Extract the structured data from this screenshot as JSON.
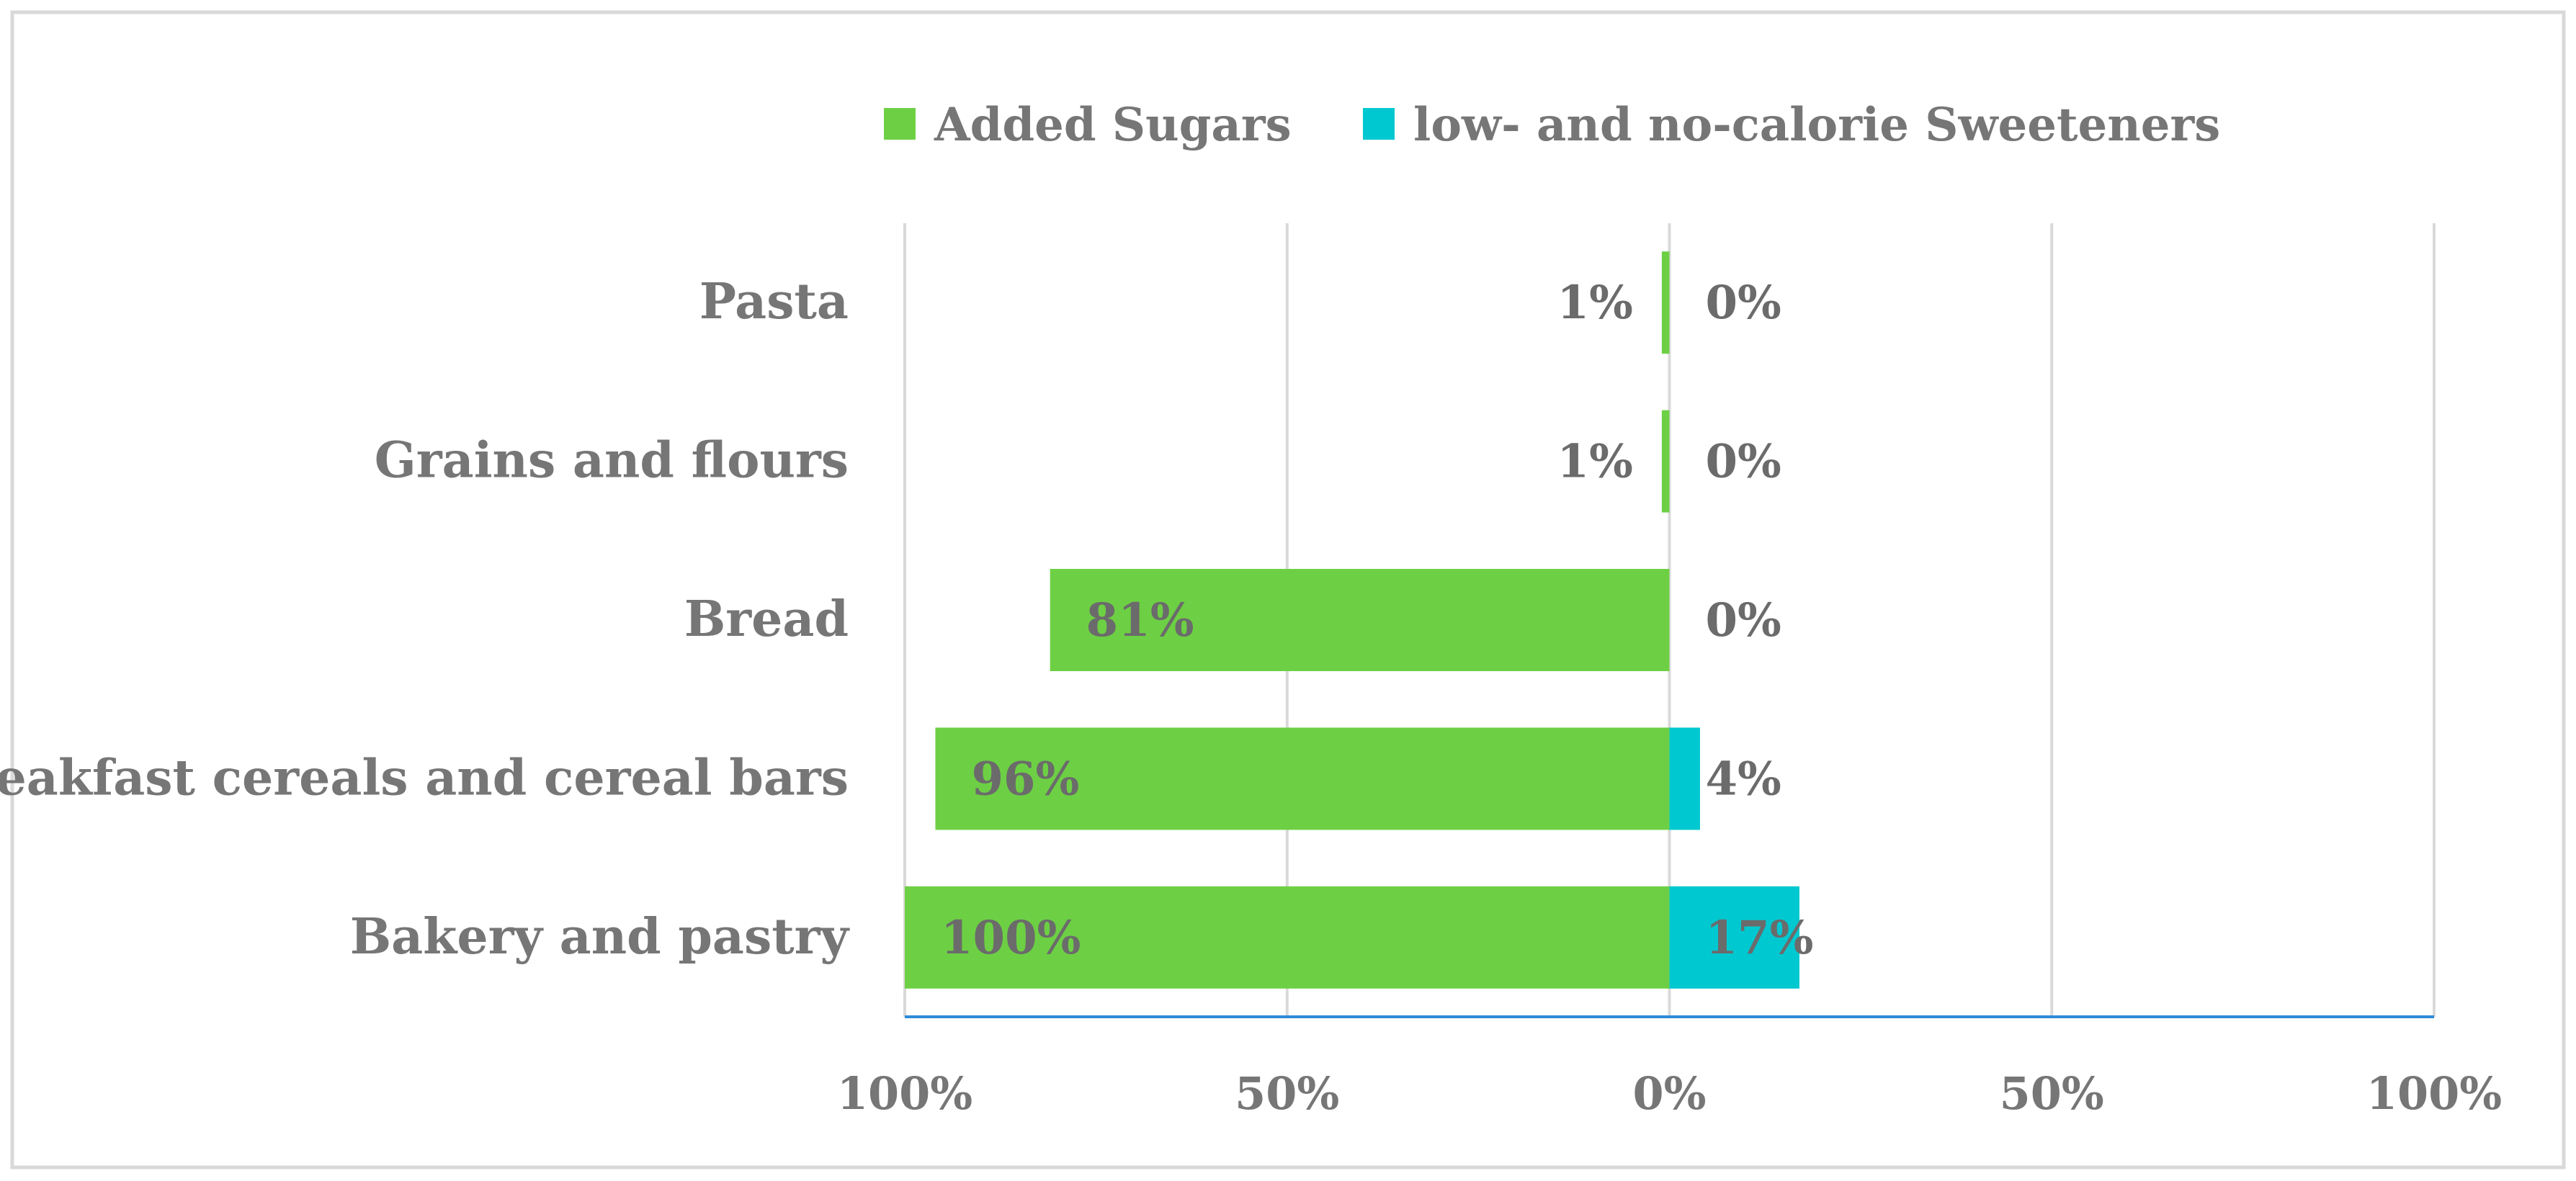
{
  "chart_data": {
    "type": "bar",
    "orientation": "horizontal-diverging",
    "title": "",
    "xlabel": "",
    "ylabel": "",
    "categories": [
      "Pasta",
      "Grains and flours",
      "Bread",
      "Breakfast cereals and cereal bars",
      "Bakery and pastry"
    ],
    "series": [
      {
        "name": "Added Sugars",
        "color": "#6dd044",
        "direction": "left",
        "values": [
          1,
          1,
          81,
          96,
          100
        ],
        "labels": [
          "1%",
          "1%",
          "81%",
          "96%",
          "100%"
        ]
      },
      {
        "name": "low- and no-calorie Sweeteners",
        "color": "#00c8d0",
        "direction": "right",
        "values": [
          0,
          0,
          0,
          4,
          17
        ],
        "labels": [
          "0%",
          "0%",
          "0%",
          "4%",
          "17%"
        ]
      }
    ],
    "xlim": [
      -100,
      100
    ],
    "xticks": [
      -100,
      -50,
      0,
      50,
      100
    ],
    "xtick_labels": [
      "100%",
      "50%",
      "0%",
      "50%",
      "100%"
    ],
    "grid": true,
    "legend_position": "top"
  },
  "colors": {
    "frame": "#d9d9d9",
    "grid": "#d9d9d9",
    "axis": "#2e8bd6",
    "text": "#767676"
  }
}
